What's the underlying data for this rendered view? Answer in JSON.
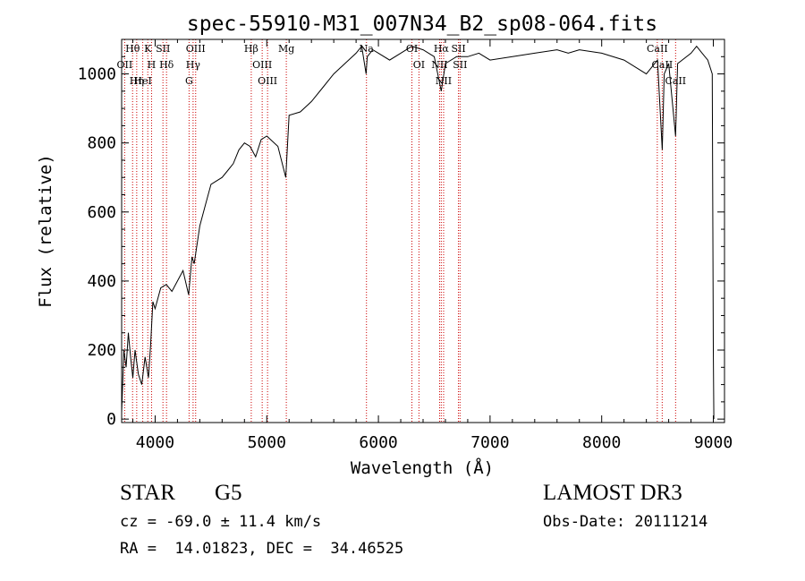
{
  "chart_data": {
    "type": "line",
    "title": "spec-55910-M31_007N34_B2_sp08-064.fits",
    "xlabel": "Wavelength (Å)",
    "ylabel": "Flux (relative)",
    "xlim": [
      3700,
      9100
    ],
    "ylim": [
      -10,
      1100
    ],
    "xticks": [
      4000,
      5000,
      6000,
      7000,
      8000,
      9000
    ],
    "yticks": [
      0,
      200,
      400,
      600,
      800,
      1000
    ],
    "series": [
      {
        "name": "flux",
        "x": [
          3700,
          3720,
          3740,
          3760,
          3780,
          3800,
          3820,
          3850,
          3880,
          3910,
          3940,
          3960,
          3980,
          4000,
          4050,
          4100,
          4150,
          4200,
          4250,
          4300,
          4330,
          4350,
          4400,
          4450,
          4500,
          4550,
          4600,
          4650,
          4700,
          4750,
          4800,
          4850,
          4900,
          4950,
          5000,
          5100,
          5170,
          5200,
          5300,
          5400,
          5500,
          5600,
          5700,
          5800,
          5850,
          5890,
          5900,
          5950,
          6000,
          6100,
          6200,
          6300,
          6400,
          6500,
          6563,
          6600,
          6700,
          6800,
          6900,
          7000,
          7200,
          7400,
          7600,
          7700,
          7800,
          8000,
          8200,
          8400,
          8500,
          8542,
          8560,
          8600,
          8662,
          8680,
          8800,
          8850,
          8900,
          8950,
          8990,
          9000,
          9005
        ],
        "values": [
          20,
          200,
          150,
          250,
          180,
          120,
          200,
          130,
          100,
          180,
          120,
          220,
          340,
          320,
          380,
          390,
          370,
          400,
          430,
          360,
          470,
          450,
          560,
          620,
          680,
          690,
          700,
          720,
          740,
          780,
          800,
          790,
          760,
          810,
          820,
          790,
          700,
          880,
          890,
          920,
          960,
          1000,
          1030,
          1060,
          1080,
          1000,
          1050,
          1070,
          1060,
          1040,
          1060,
          1080,
          1070,
          1050,
          950,
          1030,
          1050,
          1050,
          1060,
          1040,
          1050,
          1060,
          1070,
          1060,
          1070,
          1060,
          1040,
          1000,
          1040,
          780,
          1000,
          1030,
          820,
          1030,
          1060,
          1080,
          1060,
          1040,
          1000,
          200,
          0
        ]
      }
    ],
    "lines": [
      {
        "label": "Hθ",
        "x": 3798
      },
      {
        "label": "OII",
        "x": 3727
      },
      {
        "label": "Hη",
        "x": 3835
      },
      {
        "label": "HeI",
        "x": 3889
      },
      {
        "label": "K",
        "x": 3934
      },
      {
        "label": "H",
        "x": 3968
      },
      {
        "label": "SII",
        "x": 4070
      },
      {
        "label": "Hδ",
        "x": 4102
      },
      {
        "label": "OIII",
        "x": 4363
      },
      {
        "label": "Hγ",
        "x": 4340
      },
      {
        "label": "G",
        "x": 4304
      },
      {
        "label": "Hβ",
        "x": 4861
      },
      {
        "label": "OIII",
        "x": 4959
      },
      {
        "label": "OIII",
        "x": 5007
      },
      {
        "label": "Mg",
        "x": 5175
      },
      {
        "label": "Na",
        "x": 5893
      },
      {
        "label": "OI",
        "x": 6300
      },
      {
        "label": "OI",
        "x": 6363
      },
      {
        "label": "Hα",
        "x": 6563
      },
      {
        "label": "NII",
        "x": 6548
      },
      {
        "label": "NII",
        "x": 6584
      },
      {
        "label": "SII",
        "x": 6717
      },
      {
        "label": "SII",
        "x": 6731
      },
      {
        "label": "CaII",
        "x": 8498
      },
      {
        "label": "CaII",
        "x": 8542
      },
      {
        "label": "CaII",
        "x": 8662
      }
    ]
  },
  "info": {
    "object_class": "STAR",
    "subclass": "G5",
    "survey": "LAMOST DR3",
    "cz": "cz = -69.0 ± 11.4 km/s",
    "obs_date": "Obs-Date: 20111214",
    "radec": "RA =  14.01823, DEC =  34.46525"
  }
}
